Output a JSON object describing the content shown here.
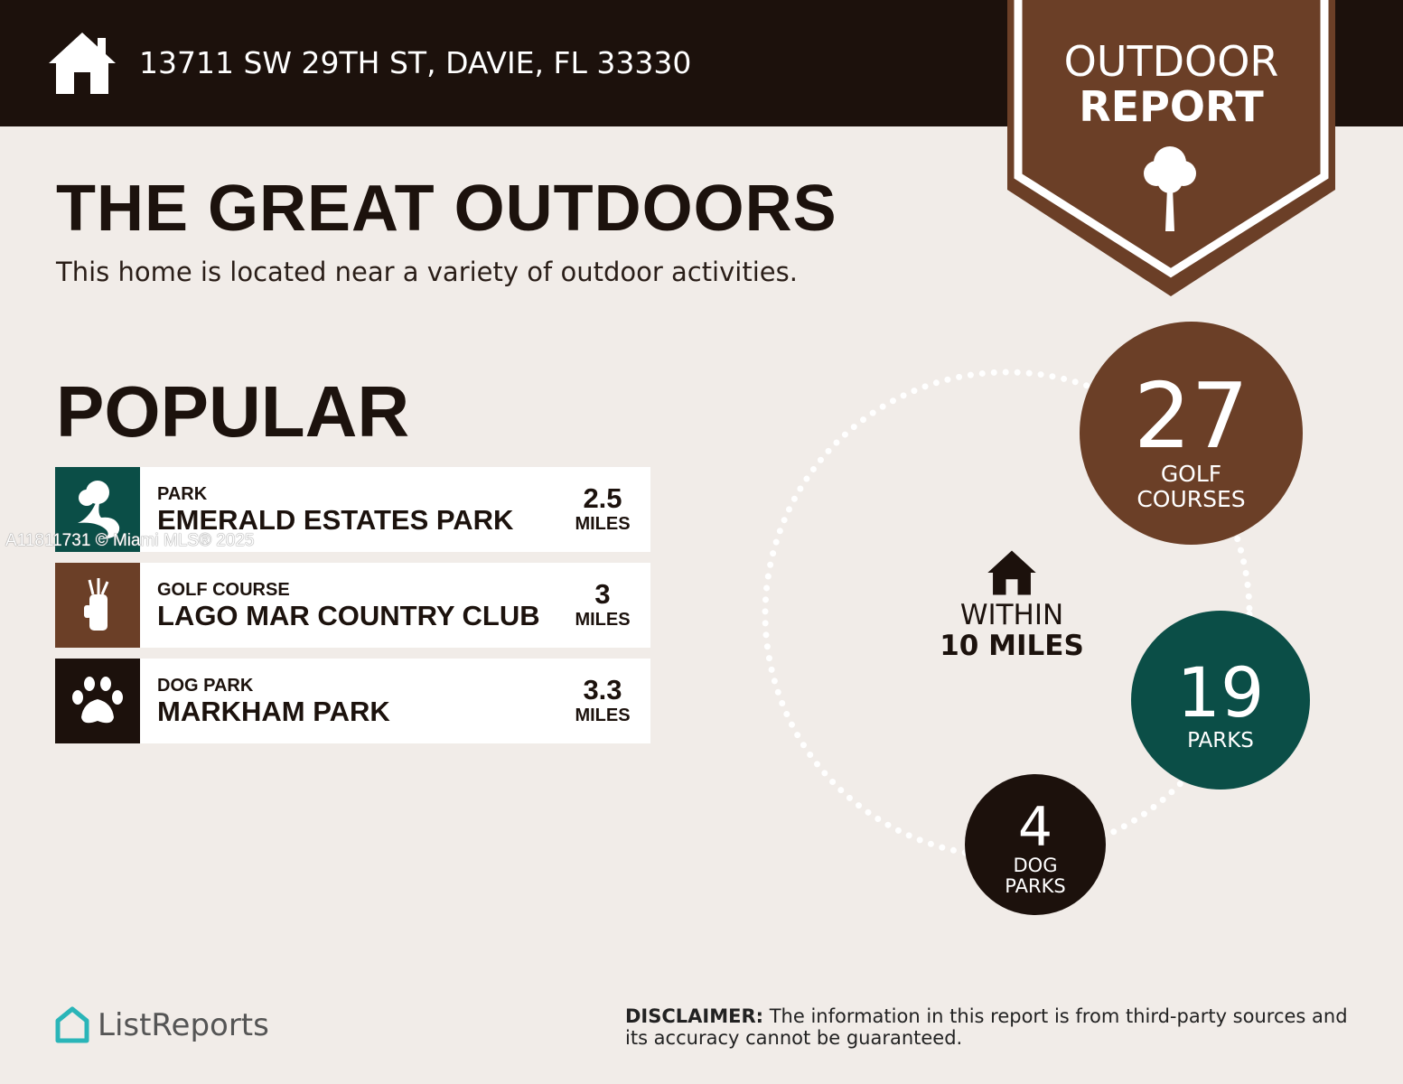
{
  "header": {
    "address": "13711 SW 29TH ST, DAVIE, FL 33330",
    "badge_line1": "OUTDOOR",
    "badge_line2": "REPORT"
  },
  "title": "THE GREAT OUTDOORS",
  "subtitle": "This home is located near a variety of outdoor activities.",
  "popular": {
    "heading": "POPULAR",
    "items": [
      {
        "category": "PARK",
        "name": "EMERALD ESTATES PARK",
        "distance": "2.5",
        "unit": "MILES",
        "icon": "park-icon",
        "color": "#0b4e47"
      },
      {
        "category": "GOLF COURSE",
        "name": "LAGO MAR COUNTRY CLUB",
        "distance": "3",
        "unit": "MILES",
        "icon": "golf-bag-icon",
        "color": "#6b3f27"
      },
      {
        "category": "DOG PARK",
        "name": "MARKHAM PARK",
        "distance": "3.3",
        "unit": "MILES",
        "icon": "paw-icon",
        "color": "#1c110c"
      }
    ]
  },
  "watermark": "A11811731 © Miami MLS® 2025",
  "summary": {
    "within_label": "WITHIN",
    "radius": "10 MILES",
    "golf": {
      "count": "27",
      "l1": "GOLF",
      "l2": "COURSES",
      "color": "#6b3f27"
    },
    "parks": {
      "count": "19",
      "l1": "PARKS",
      "color": "#0b4e47"
    },
    "dog": {
      "count": "4",
      "l1": "DOG",
      "l2": "PARKS",
      "color": "#1c110c"
    }
  },
  "footer": {
    "brand": "ListReports",
    "disclaimer_label": "DISCLAIMER:",
    "disclaimer": " The information in this report is from third-party sources and its accuracy cannot be guaranteed."
  }
}
